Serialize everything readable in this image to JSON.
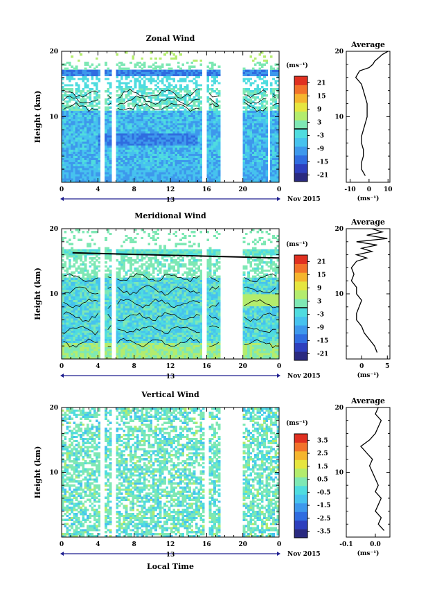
{
  "colors": {
    "scale": [
      "#2a2a80",
      "#2d3fbd",
      "#2f6ce0",
      "#3d98ec",
      "#46c2ee",
      "#4fdcdf",
      "#7ee8b4",
      "#b3ec6d",
      "#e6e63f",
      "#f5b52e",
      "#f2722a",
      "#e03020"
    ]
  },
  "chart_data": [
    {
      "type": "heatmap",
      "title": "Zonal Wind",
      "ylabel": "Height (km)",
      "ylim": [
        0,
        20
      ],
      "yticks": [
        "20",
        "10"
      ],
      "xlim": [
        0,
        24
      ],
      "xticks": [
        "0",
        "4",
        "8",
        "12",
        "16",
        "20",
        "0"
      ],
      "date_label": "13",
      "month_label": "Nov 2015",
      "data_gaps_hours": [
        [
          4.3,
          4.8
        ],
        [
          5.5,
          6.0
        ],
        [
          15.4,
          16.0
        ],
        [
          17.5,
          20.0
        ],
        [
          22.8,
          23.0
        ]
      ],
      "colorbar": {
        "unit": "(ms⁻¹)",
        "range": [
          -24,
          24
        ],
        "labels": [
          "21",
          "15",
          "9",
          "3",
          "-3",
          "-9",
          "-15",
          "-21"
        ],
        "contour_at": 0
      },
      "average_profile": {
        "title": "Average",
        "xlabel": "(ms⁻¹)",
        "xlim": [
          -12,
          11
        ],
        "xticks": [
          "-10",
          "0",
          "10"
        ],
        "yticks": [
          "20",
          "10"
        ],
        "height_km": [
          1,
          2,
          3,
          4,
          5,
          6,
          7,
          8,
          9,
          10,
          11,
          12,
          13,
          14,
          15,
          16,
          16.5,
          17,
          17.5,
          18,
          18.5,
          19,
          19.5,
          20
        ],
        "values": [
          -2,
          -4,
          -4,
          -3,
          -3,
          -4,
          -4,
          -3,
          -2,
          -1,
          -1,
          -1,
          -2,
          -3,
          -4,
          -7,
          -6,
          -5,
          0,
          2,
          3,
          5,
          7,
          10
        ]
      }
    },
    {
      "type": "heatmap",
      "title": "Meridional Wind",
      "ylabel": "Height (km)",
      "ylim": [
        0,
        20
      ],
      "yticks": [
        "20",
        "10"
      ],
      "xlim": [
        0,
        24
      ],
      "xticks": [
        "0",
        "4",
        "8",
        "12",
        "16",
        "20",
        "0"
      ],
      "date_label": "13",
      "month_label": "Nov 2015",
      "data_gaps_hours": [
        [
          4.3,
          4.8
        ],
        [
          5.5,
          6.0
        ],
        [
          15.4,
          16.0
        ],
        [
          17.5,
          20.0
        ]
      ],
      "colorbar": {
        "unit": "(ms⁻¹)",
        "range": [
          -24,
          24
        ],
        "labels": [
          "21",
          "15",
          "9",
          "3",
          "-3",
          "-9",
          "-15",
          "-21"
        ],
        "contour_at": 0
      },
      "average_profile": {
        "title": "Average",
        "xlabel": "(ms⁻¹)",
        "xlim": [
          -3,
          5.5
        ],
        "xticks": [
          "0",
          "5"
        ],
        "yticks": [
          "20",
          "10"
        ],
        "height_km": [
          1,
          2,
          3,
          4,
          5,
          6,
          7,
          8,
          9,
          10,
          11,
          12,
          13,
          14,
          15,
          15.5,
          16,
          16.5,
          17,
          17.5,
          18,
          18.5,
          19,
          19.5,
          20
        ],
        "values": [
          3,
          2.5,
          1.5,
          0.5,
          0,
          -1,
          -1,
          -0.5,
          0,
          -1,
          -1,
          -2,
          -1.5,
          -2,
          -1,
          1,
          -1,
          2,
          0,
          3,
          -1,
          5,
          1,
          4,
          2
        ]
      }
    },
    {
      "type": "heatmap",
      "title": "Vertical Wind",
      "ylabel": "Height (km)",
      "xlabel": "Local Time",
      "ylim": [
        0,
        20
      ],
      "yticks": [
        "20",
        "10"
      ],
      "xlim": [
        0,
        24
      ],
      "xticks": [
        "0",
        "4",
        "8",
        "12",
        "16",
        "20",
        "0"
      ],
      "date_label": "13",
      "month_label": "Nov 2015",
      "data_gaps_hours": [
        [
          4.2,
          4.7
        ],
        [
          5.4,
          5.9
        ],
        [
          15.7,
          16.3
        ],
        [
          17.5,
          20.0
        ]
      ],
      "colorbar": {
        "unit": "(ms⁻¹)",
        "range": [
          -4,
          4
        ],
        "labels": [
          "3.5",
          "2.5",
          "1.5",
          "0.5",
          "-0.5",
          "-1.5",
          "-2.5",
          "-3.5"
        ]
      },
      "average_profile": {
        "title": "Average",
        "xlabel": "(ms⁻¹)",
        "xlim": [
          -0.1,
          0.05
        ],
        "xticks": [
          "-0.1",
          "0.0"
        ],
        "yticks": [
          "20",
          "10"
        ],
        "height_km": [
          1,
          2,
          3,
          4,
          5,
          6,
          7,
          8,
          9,
          10,
          11,
          12,
          13,
          14,
          15,
          16,
          17,
          18,
          19,
          20
        ],
        "values": [
          0.03,
          0.01,
          0.02,
          0.0,
          0.01,
          0.02,
          0.0,
          0.01,
          0.0,
          -0.01,
          -0.02,
          -0.01,
          -0.03,
          -0.05,
          -0.02,
          0.0,
          0.01,
          0.02,
          0.0,
          0.01
        ]
      }
    }
  ]
}
